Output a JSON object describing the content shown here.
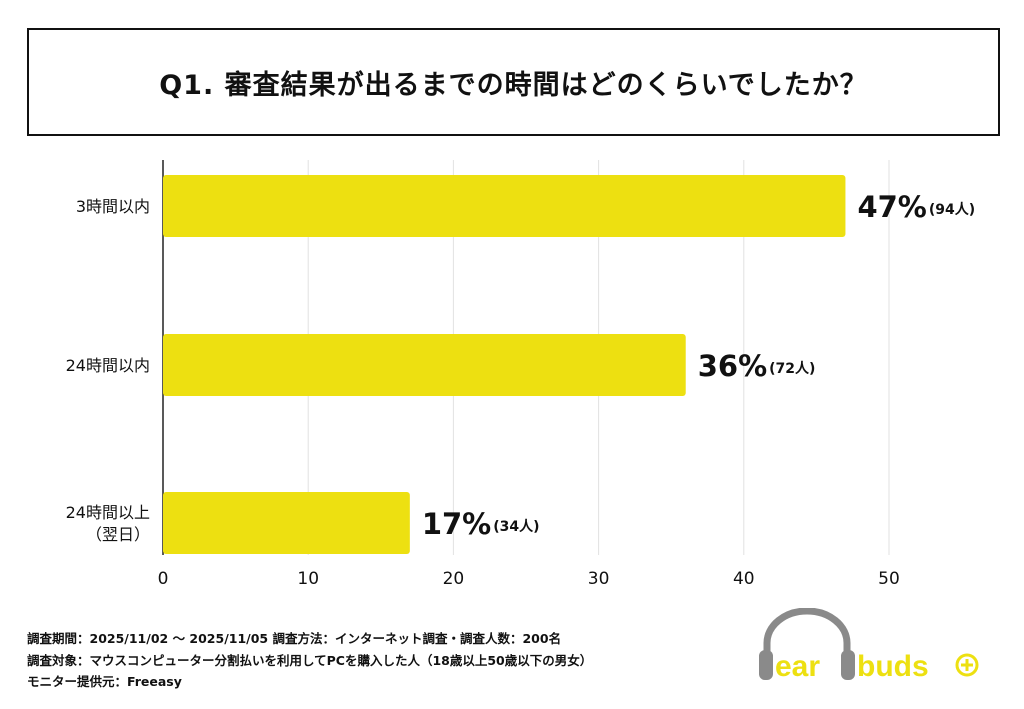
{
  "chart_data": {
    "type": "bar",
    "orientation": "horizontal",
    "title": "Q1. 審査結果が出るまでの時間はどのくらいでしたか？",
    "categories": [
      "3時間以内",
      "24時間以内",
      "24時間以上\n（翌日）"
    ],
    "values": [
      47,
      36,
      17
    ],
    "value_labels": [
      "47%",
      "36%",
      "17%"
    ],
    "count_labels": [
      "(94人)",
      "(72人)",
      "(34人)"
    ],
    "xlim": [
      0,
      50
    ],
    "xticks": [
      "0",
      "10",
      "20",
      "30",
      "40",
      "50"
    ],
    "xlabel": "",
    "ylabel": "",
    "grid": true,
    "bar_color": "#EDE011"
  },
  "footer": {
    "line1": "調査期間：2025/11/02 ～ 2025/11/05  調査方法：インターネット調査・調査人数：200名",
    "line2": "調査対象：マウスコンピューター分割払いを利用してPCを購入した人（18歳以上50歳以下の男女）",
    "line3": "モニター提供元：Freeasy"
  },
  "logo": {
    "text": "earbuds+",
    "color_gray": "#8a8a8a",
    "color_yellow": "#EDE011"
  }
}
